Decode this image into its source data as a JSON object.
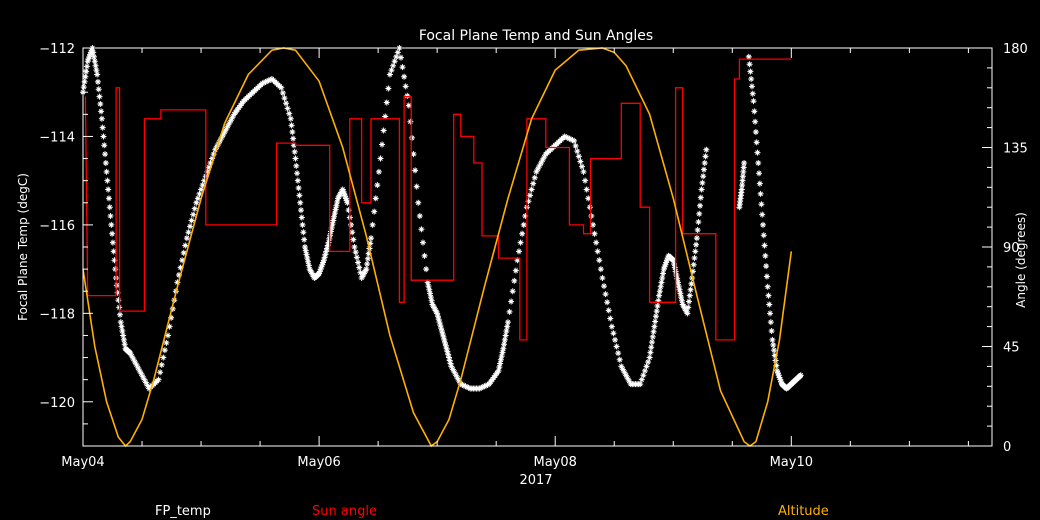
{
  "chart_data": {
    "type": "line",
    "title": "Focal Plane Temp and Sun Angles",
    "xlabel": "2017",
    "ylabel_left": "Focal Plane Temp (degC)",
    "ylabel_right": "Angle (degrees)",
    "x_unit": "days since May04 00:00",
    "xlim": [
      0,
      7.7
    ],
    "x_ticks": [
      {
        "x": 0,
        "label": "May04"
      },
      {
        "x": 2,
        "label": "May06"
      },
      {
        "x": 4,
        "label": "May08"
      },
      {
        "x": 6,
        "label": "May10"
      }
    ],
    "ylim_left": [
      -121,
      -112
    ],
    "y_ticks_left": [
      {
        "v": -112,
        "label": "−112"
      },
      {
        "v": -114,
        "label": "−114"
      },
      {
        "v": -116,
        "label": "−116"
      },
      {
        "v": -118,
        "label": "−118"
      },
      {
        "v": -120,
        "label": "−120"
      }
    ],
    "ylim_right": [
      0,
      180
    ],
    "y_ticks_right": [
      {
        "v": 0,
        "label": "0"
      },
      {
        "v": 45,
        "label": "45"
      },
      {
        "v": 90,
        "label": "90"
      },
      {
        "v": 135,
        "label": "135"
      },
      {
        "v": 180,
        "label": "180"
      }
    ],
    "grid": false,
    "legend": [
      {
        "label": "FP_temp",
        "color": "#ffffff"
      },
      {
        "label": "Sun angle",
        "color": "#ff0000"
      },
      {
        "label": "Altitude",
        "color": "#ffb000"
      }
    ],
    "series": [
      {
        "name": "FP_temp",
        "axis": "left",
        "style": "asterisk-markers",
        "color": "#ffffff",
        "x": [
          0.0,
          0.04,
          0.08,
          0.12,
          0.16,
          0.2,
          0.24,
          0.28,
          0.32,
          0.36,
          0.4,
          0.48,
          0.56,
          0.64,
          0.72,
          0.8,
          0.88,
          0.96,
          1.04,
          1.12,
          1.2,
          1.28,
          1.36,
          1.44,
          1.52,
          1.6,
          1.68,
          1.76,
          1.8,
          1.84,
          1.88,
          1.92,
          1.96,
          2.0,
          2.04,
          2.08,
          2.12,
          2.16,
          2.2,
          2.24,
          2.3,
          2.36,
          2.4,
          2.44,
          2.52,
          2.6,
          2.68,
          2.76,
          2.84,
          2.92,
          2.96,
          3.0,
          3.04,
          3.08,
          3.12,
          3.2,
          3.28,
          3.36,
          3.44,
          3.52,
          3.56,
          3.6,
          3.68,
          3.76,
          3.84,
          3.92,
          4.0,
          4.08,
          4.16,
          4.24,
          4.32,
          4.4,
          4.48,
          4.56,
          4.64,
          4.72,
          4.8,
          4.84,
          4.88,
          4.92,
          4.96,
          5.0,
          5.04,
          5.08,
          5.12,
          5.16,
          5.2,
          5.24,
          5.28
        ],
        "y": [
          -113.0,
          -112.3,
          -112.0,
          -112.6,
          -113.6,
          -114.8,
          -116.0,
          -117.2,
          -118.2,
          -118.8,
          -118.9,
          -119.3,
          -119.7,
          -119.5,
          -118.5,
          -117.3,
          -116.3,
          -115.5,
          -114.9,
          -114.3,
          -113.9,
          -113.5,
          -113.2,
          -113.0,
          -112.8,
          -112.7,
          -112.9,
          -113.6,
          -114.5,
          -115.5,
          -116.5,
          -117.0,
          -117.2,
          -117.1,
          -116.8,
          -116.4,
          -115.9,
          -115.4,
          -115.2,
          -115.5,
          -116.5,
          -117.2,
          -117.0,
          -116.3,
          -114.5,
          -112.6,
          -112.0,
          -113.3,
          -115.5,
          -117.3,
          -117.8,
          -118.0,
          -118.4,
          -118.8,
          -119.2,
          -119.6,
          -119.7,
          -119.7,
          -119.6,
          -119.3,
          -118.8,
          -118.2,
          -116.8,
          -115.6,
          -114.8,
          -114.4,
          -114.2,
          -114.0,
          -114.1,
          -114.8,
          -116.0,
          -117.2,
          -118.3,
          -119.2,
          -119.6,
          -119.6,
          -119.0,
          -118.3,
          -117.6,
          -117.0,
          -116.7,
          -116.8,
          -117.3,
          -117.8,
          -118.0,
          -117.2,
          -116.3,
          -115.2,
          -114.3
        ]
      },
      {
        "name": "FP_temp_segment_2",
        "axis": "left",
        "style": "asterisk-markers",
        "color": "#ffffff",
        "x": [
          5.64,
          5.68,
          5.72,
          5.76,
          5.8,
          5.84,
          5.88,
          5.92,
          5.96,
          6.0,
          6.04,
          6.08
        ],
        "y": [
          -112.2,
          -113.2,
          -114.6,
          -116.0,
          -117.4,
          -118.6,
          -119.3,
          -119.6,
          -119.7,
          -119.6,
          -119.5,
          -119.4
        ]
      },
      {
        "name": "FP_temp_segment_1b",
        "axis": "left",
        "style": "asterisk-markers",
        "color": "#ffffff",
        "x": [
          5.56,
          5.58,
          5.6
        ],
        "y": [
          -115.6,
          -115.2,
          -114.6
        ]
      },
      {
        "name": "Sun angle",
        "axis": "right",
        "style": "step-line",
        "color": "#ff0000",
        "x": [
          0.02,
          0.04,
          0.28,
          0.28,
          0.31,
          0.31,
          0.52,
          0.52,
          0.66,
          0.66,
          1.04,
          1.04,
          1.64,
          1.64,
          1.8,
          1.8,
          2.09,
          2.09,
          2.26,
          2.26,
          2.36,
          2.36,
          2.44,
          2.44,
          2.68,
          2.68,
          2.72,
          2.72,
          2.78,
          2.78,
          3.14,
          3.14,
          3.2,
          3.2,
          3.31,
          3.31,
          3.38,
          3.38,
          3.52,
          3.52,
          3.7,
          3.7,
          3.76,
          3.76,
          3.92,
          3.92,
          4.12,
          4.12,
          4.24,
          4.24,
          4.3,
          4.3,
          4.56,
          4.56,
          4.72,
          4.72,
          4.8,
          4.8,
          5.02,
          5.02,
          5.08,
          5.08,
          5.36,
          5.36,
          5.52,
          5.52,
          5.56,
          5.56,
          5.78,
          5.78,
          5.92,
          5.92,
          6.0
        ],
        "y": [
          158,
          68,
          68,
          162,
          162,
          61,
          61,
          148,
          148,
          152,
          152,
          100,
          100,
          137,
          137,
          136,
          136,
          88,
          88,
          148,
          148,
          110,
          110,
          148,
          148,
          65,
          65,
          158,
          158,
          75,
          75,
          150,
          150,
          140,
          140,
          128,
          128,
          95,
          95,
          85,
          85,
          48,
          48,
          148,
          148,
          135,
          135,
          100,
          100,
          96,
          96,
          130,
          130,
          155,
          155,
          108,
          108,
          65,
          65,
          162,
          162,
          96,
          96,
          48,
          48,
          166,
          166,
          175,
          175,
          175,
          175,
          175,
          175
        ]
      },
      {
        "name": "Altitude",
        "axis": "right",
        "style": "line",
        "color": "#ffb000",
        "x": [
          0.0,
          0.1,
          0.2,
          0.3,
          0.36,
          0.4,
          0.5,
          0.6,
          0.8,
          1.0,
          1.2,
          1.4,
          1.6,
          1.7,
          1.8,
          2.0,
          2.2,
          2.4,
          2.6,
          2.8,
          2.95,
          3.0,
          3.1,
          3.2,
          3.4,
          3.6,
          3.8,
          4.0,
          4.2,
          4.4,
          4.5,
          4.6,
          4.8,
          5.0,
          5.2,
          5.4,
          5.6,
          5.65,
          5.7,
          5.8,
          5.9,
          6.0
        ],
        "y": [
          80,
          45,
          20,
          4,
          0,
          2,
          12,
          30,
          72,
          112,
          146,
          168,
          179,
          180,
          179,
          165,
          135,
          95,
          50,
          15,
          0,
          2,
          12,
          30,
          72,
          112,
          148,
          170,
          179,
          180,
          178,
          172,
          150,
          112,
          68,
          25,
          2,
          0,
          2,
          20,
          48,
          88
        ]
      }
    ]
  }
}
